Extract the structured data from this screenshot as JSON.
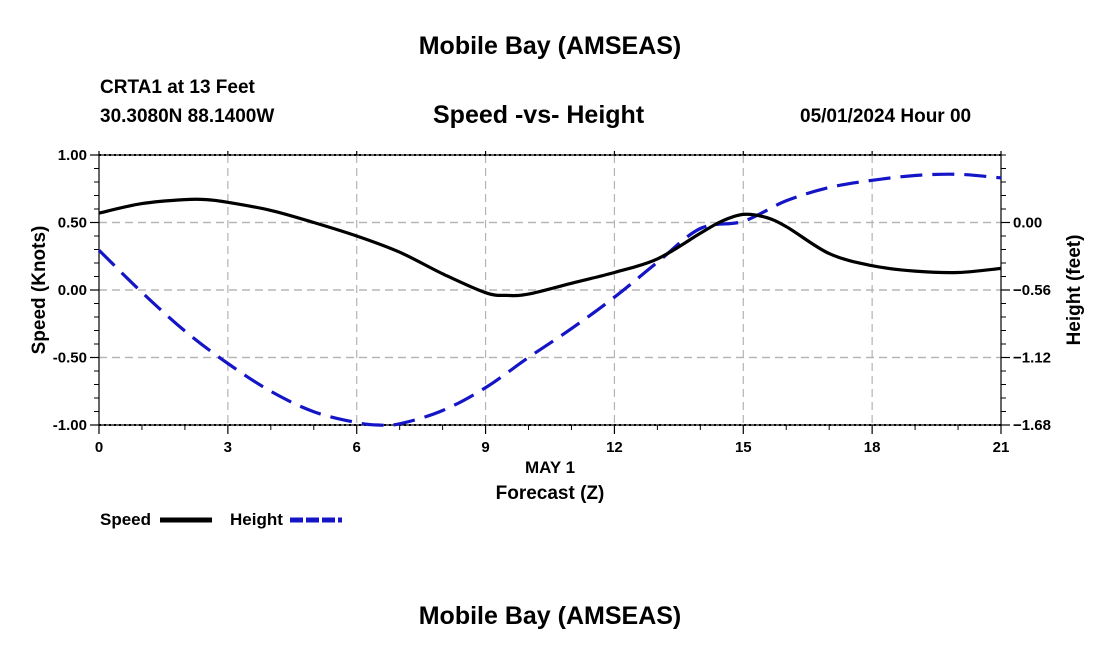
{
  "page": {
    "top_title": "Mobile Bay (AMSEAS)",
    "bottom_title": "Mobile Bay (AMSEAS)",
    "station_line": "CRTA1 at 13 Feet",
    "coord_line": "30.3080N  88.1400W",
    "date_line": "05/01/2024 Hour 00"
  },
  "chart_data": {
    "type": "line",
    "title": "Speed -vs- Height",
    "xlabel": "Forecast (Z)",
    "date_label": "MAY 1",
    "ylabel": "Speed (Knots)",
    "y2label": "Height (feet)",
    "xlim": [
      0,
      21
    ],
    "ylim": [
      -1.0,
      1.0
    ],
    "y2lim": [
      -1.68,
      0.56
    ],
    "x_ticks": [
      "0",
      "3",
      "6",
      "9",
      "12",
      "15",
      "18",
      "21"
    ],
    "y_ticks": [
      "-1.00",
      "-0.50",
      "0.00",
      "0.50",
      "1.00"
    ],
    "y2_ticks": [
      "-1.68",
      "-1.12",
      "-0.56",
      "0.00"
    ],
    "grid": true,
    "colors": {
      "speed": "#000000",
      "height": "#1515c8",
      "grid": "#b4b4b4"
    },
    "series": [
      {
        "name": "Speed",
        "axis": "left",
        "x": [
          0,
          1,
          2,
          2.5,
          3,
          4,
          5,
          6,
          7,
          8,
          9,
          9.5,
          10,
          11,
          12,
          13,
          14,
          14.5,
          15,
          15.5,
          16,
          17,
          18,
          19,
          20,
          21
        ],
        "values": [
          0.57,
          0.64,
          0.67,
          0.67,
          0.65,
          0.59,
          0.5,
          0.4,
          0.28,
          0.12,
          -0.02,
          -0.04,
          -0.03,
          0.05,
          0.13,
          0.23,
          0.42,
          0.51,
          0.56,
          0.54,
          0.47,
          0.27,
          0.18,
          0.14,
          0.13,
          0.16
        ]
      },
      {
        "name": "Height",
        "axis": "right",
        "x": [
          0,
          1,
          2,
          3,
          4,
          5,
          6,
          6.5,
          7,
          8,
          9,
          10,
          11,
          12,
          13,
          14,
          15,
          16,
          17,
          18,
          19,
          20,
          21
        ],
        "values": [
          -0.23,
          -0.58,
          -0.9,
          -1.17,
          -1.4,
          -1.57,
          -1.66,
          -1.68,
          -1.67,
          -1.56,
          -1.37,
          -1.12,
          -0.88,
          -0.62,
          -0.33,
          -0.05,
          0.01,
          0.18,
          0.29,
          0.35,
          0.39,
          0.4,
          0.37
        ]
      }
    ],
    "legend": [
      {
        "label": "Speed",
        "style": "solid"
      },
      {
        "label": "Height",
        "style": "dashed"
      }
    ]
  }
}
